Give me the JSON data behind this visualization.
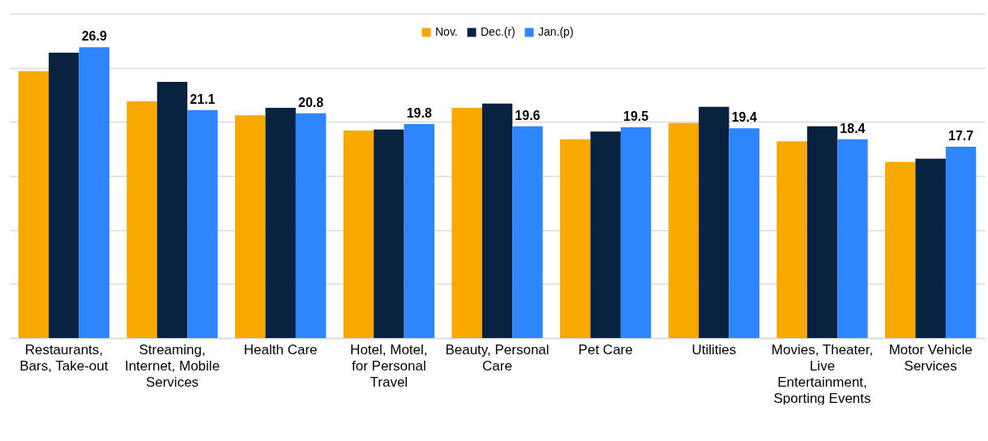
{
  "chart_data": {
    "type": "bar",
    "categories": [
      "Restaurants, Bars, Take-out",
      "Streaming, Internet, Mobile Services",
      "Health Care",
      "Hotel, Motel, for Personal Travel",
      "Beauty, Personal Care",
      "Pet Care",
      "Utilities",
      "Movies, Theater, Live Entertainment, Sporting Events",
      "Motor Vehicle Services"
    ],
    "series": [
      {
        "name": "Nov.",
        "color": "#f9a800",
        "values": [
          24.7,
          21.9,
          20.6,
          19.2,
          21.3,
          18.4,
          19.9,
          18.2,
          16.3
        ]
      },
      {
        "name": "Dec.(r)",
        "color": "#08223f",
        "values": [
          26.4,
          23.7,
          21.3,
          19.3,
          21.7,
          19.1,
          21.4,
          19.6,
          16.6
        ]
      },
      {
        "name": "Jan.(p)",
        "color": "#2e86ff",
        "values": [
          26.9,
          21.1,
          20.8,
          19.8,
          19.6,
          19.5,
          19.4,
          18.4,
          17.7
        ],
        "value_labels": [
          "26.9",
          "21.1",
          "20.8",
          "19.8",
          "19.6",
          "19.5",
          "19.4",
          "18.4",
          "17.7"
        ]
      }
    ],
    "ylim": [
      0,
      30
    ],
    "yticks": [
      {
        "value": 0,
        "label": null
      },
      {
        "value": 5,
        "label": null
      },
      {
        "value": 10,
        "label": null
      },
      {
        "value": 15,
        "label": null
      },
      {
        "value": 20,
        "label": null
      },
      {
        "value": 25,
        "label": null
      },
      {
        "value": 30,
        "label": null
      }
    ],
    "grid": "y",
    "legend": "top"
  }
}
